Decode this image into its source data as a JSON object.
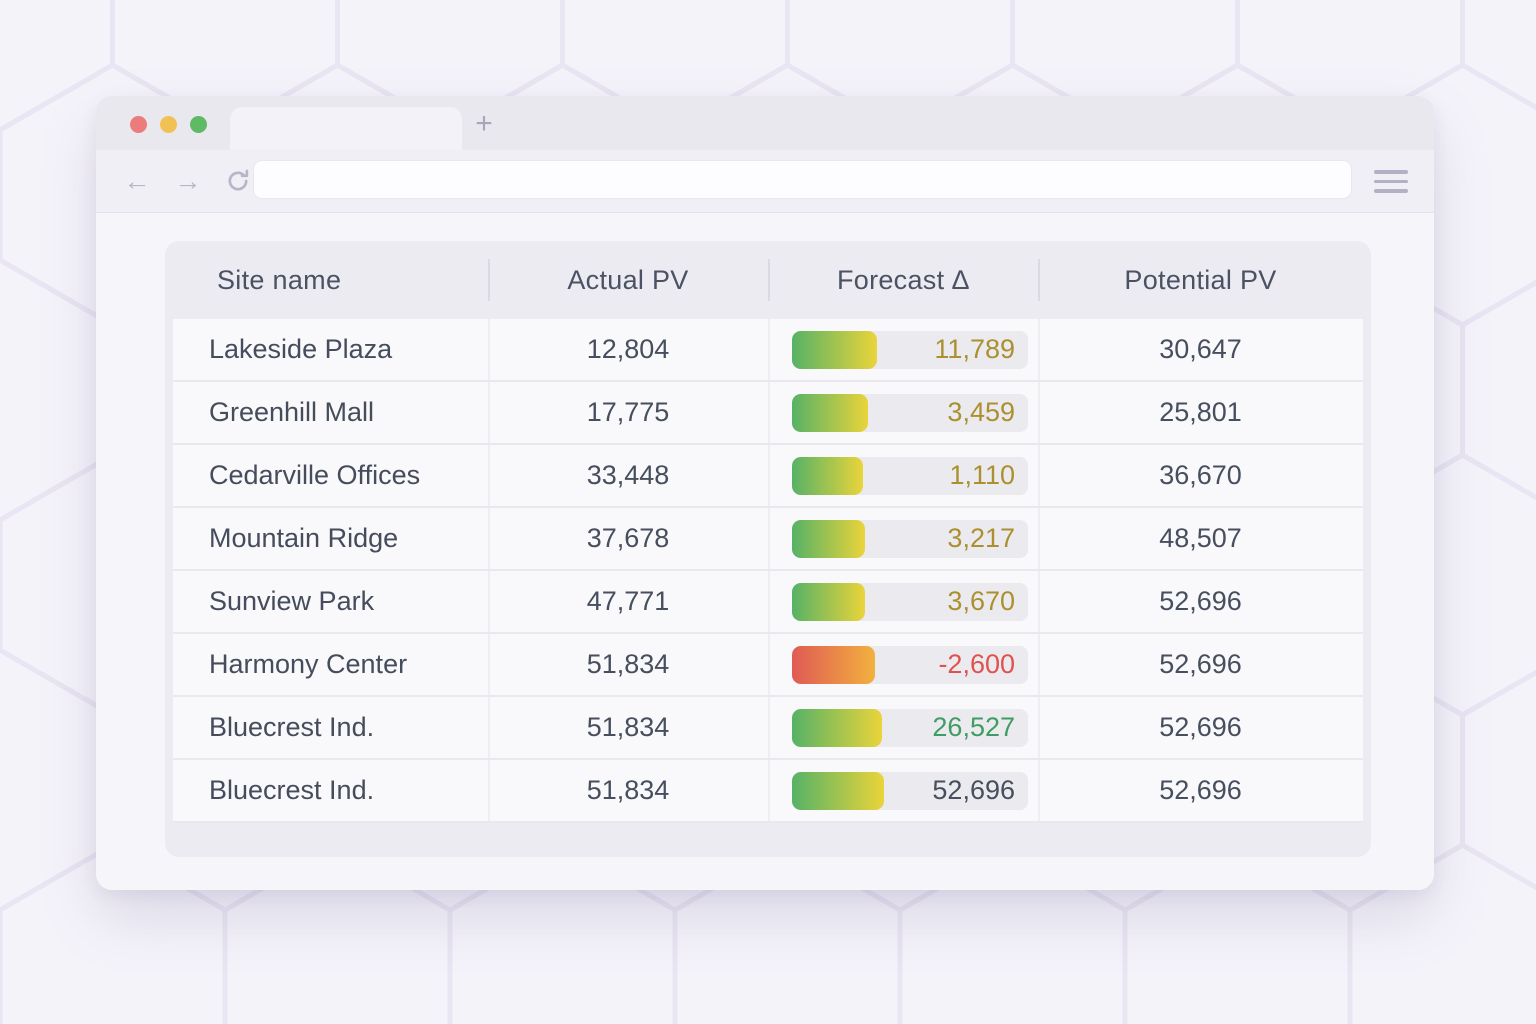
{
  "browser": {
    "traffic_lights": [
      "#ec7b7c",
      "#f2c155",
      "#5fba64"
    ],
    "new_tab_glyph": "+",
    "back_glyph": "←",
    "forward_glyph": "→",
    "url_value": "",
    "url_placeholder": ""
  },
  "table": {
    "columns": [
      {
        "label": "Site name"
      },
      {
        "label": "Actual PV"
      },
      {
        "label": "Forecast ∆"
      },
      {
        "label": "Potential PV"
      }
    ],
    "rows": [
      {
        "site": "Lakeside Plaza",
        "actual": "12,804",
        "delta": "11,789",
        "delta_color": "olive",
        "bar": {
          "kind": "up",
          "width_pct": 36
        },
        "potential": "30,647"
      },
      {
        "site": "Greenhill Mall",
        "actual": "17,775",
        "delta": "3,459",
        "delta_color": "olive",
        "bar": {
          "kind": "up",
          "width_pct": 32
        },
        "potential": "25,801"
      },
      {
        "site": "Cedarville Offices",
        "actual": "33,448",
        "delta": "1,110",
        "delta_color": "olive",
        "bar": {
          "kind": "up",
          "width_pct": 30
        },
        "potential": "36,670"
      },
      {
        "site": "Mountain Ridge",
        "actual": "37,678",
        "delta": "3,217",
        "delta_color": "olive",
        "bar": {
          "kind": "up",
          "width_pct": 31
        },
        "potential": "48,507"
      },
      {
        "site": "Sunview Park",
        "actual": "47,771",
        "delta": "3,670",
        "delta_color": "olive",
        "bar": {
          "kind": "up",
          "width_pct": 31
        },
        "potential": "52,696"
      },
      {
        "site": "Harmony Center",
        "actual": "51,834",
        "delta": "-2,600",
        "delta_color": "red",
        "bar": {
          "kind": "down",
          "width_pct": 35
        },
        "potential": "52,696"
      },
      {
        "site": "Bluecrest Ind.",
        "actual": "51,834",
        "delta": "26,527",
        "delta_color": "green",
        "bar": {
          "kind": "up",
          "width_pct": 38
        },
        "potential": "52,696"
      },
      {
        "site": "Bluecrest Ind.",
        "actual": "51,834",
        "delta": "52,696",
        "delta_color": "neutral",
        "bar": {
          "kind": "up",
          "width_pct": 39
        },
        "potential": "52,696"
      }
    ]
  },
  "colors": {
    "delta_text": {
      "olive": "#ab9030",
      "red": "#e0524e",
      "green": "#3f9c63",
      "neutral": "#474e5d"
    },
    "bar_gradients": {
      "up": [
        "#56b266",
        "#ead43a"
      ],
      "down": [
        "#e05a55",
        "#f2b13e"
      ]
    },
    "bar_track": "#ebeaef"
  }
}
